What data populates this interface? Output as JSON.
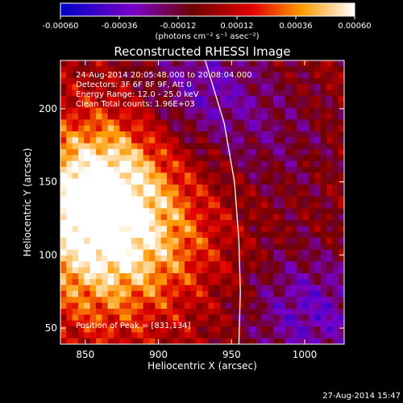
{
  "chart_data": {
    "type": "heatmap",
    "title": "Reconstructed RHESSI Image",
    "xlabel": "Heliocentric X (arcsec)",
    "ylabel": "Heliocentric Y (arcsec)",
    "xlim": [
      833,
      1027
    ],
    "ylim": [
      39,
      233
    ],
    "x_ticks": [
      850,
      900,
      950,
      1000
    ],
    "y_ticks": [
      50,
      100,
      150,
      200
    ],
    "colorbar": {
      "range": [
        -0.0006,
        0.0006
      ],
      "tick_values": [
        -0.0006,
        -0.00036,
        -0.00012,
        0.00012,
        0.00036,
        0.0006
      ],
      "tick_labels": [
        "-0.00060",
        "-0.00036",
        "-0.00012",
        "0.00012",
        "0.00036",
        "0.00060"
      ],
      "unit_label": "(photons cm⁻² s⁻¹ asec⁻²)"
    },
    "info_lines": [
      "24-Aug-2014 20:05:48.000 to 20:08:04.000",
      "Detectors: 3F 6F 8F 9F, Att 0",
      "Energy Range: 12.0 - 25.0 keV",
      "Clean    Total counts: 1.96E+03"
    ],
    "peak_label": "Position of Peak = [831,134]",
    "limb_curve": [
      [
        932,
        233
      ],
      [
        945,
        190
      ],
      [
        952,
        150
      ],
      [
        955,
        110
      ],
      [
        956,
        75
      ],
      [
        955,
        39
      ]
    ],
    "hot_regions": [
      {
        "x": 848,
        "y": 130,
        "intensity": 0.00048
      },
      {
        "x": 868,
        "y": 160,
        "intensity": 0.00032
      },
      {
        "x": 900,
        "y": 110,
        "intensity": 0.00026
      },
      {
        "x": 858,
        "y": 80,
        "intensity": 0.00022
      }
    ],
    "cold_regions": [
      {
        "x": 930,
        "y": 215,
        "intensity": -0.0003
      },
      {
        "x": 1005,
        "y": 60,
        "intensity": -0.00034
      },
      {
        "x": 985,
        "y": 175,
        "intensity": -0.00014
      }
    ]
  },
  "footer": {
    "timestamp": "27-Aug-2014 15:47"
  }
}
